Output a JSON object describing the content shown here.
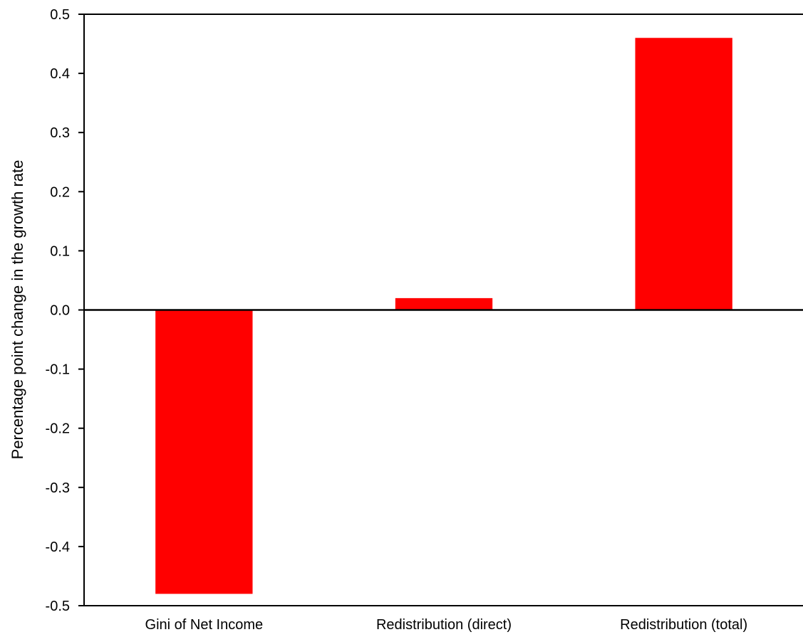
{
  "chart_data": {
    "type": "bar",
    "title": "",
    "xlabel": "",
    "ylabel": "Percentage point change in the growth rate",
    "categories": [
      "Gini of Net Income",
      "Redistribution (direct)",
      "Redistribution (total)"
    ],
    "values": [
      -0.48,
      0.02,
      0.46
    ],
    "ylim": [
      -0.5,
      0.5
    ],
    "yticks": [
      "0.5",
      "0.4",
      "0.3",
      "0.2",
      "0.1",
      "0.0",
      "-0.1",
      "-0.2",
      "-0.3",
      "-0.4",
      "-0.5"
    ],
    "bar_color": "#ff0000",
    "grid": false,
    "legend": "none"
  }
}
